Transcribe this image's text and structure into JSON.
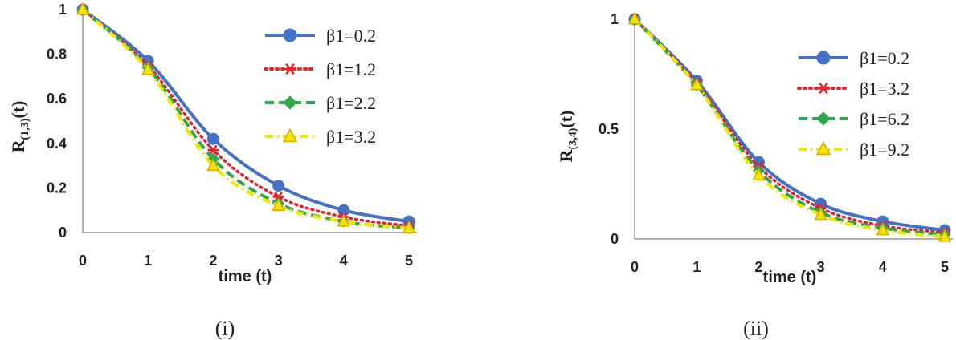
{
  "chart_data": [
    {
      "type": "line",
      "caption": "(i)",
      "xlabel": "time (t)",
      "ylabel_main": "R",
      "ylabel_sub": "(1,3)",
      "ylabel_tail": "(t)",
      "x": [
        0,
        1,
        2,
        3,
        4,
        5
      ],
      "xticks": [
        "0",
        "1",
        "2",
        "3",
        "4",
        "5"
      ],
      "yticks": [
        "0",
        "0.2",
        "0.4",
        "0.6",
        "0.8",
        "1"
      ],
      "yticks_values": [
        0,
        0.2,
        0.4,
        0.6,
        0.8,
        1
      ],
      "xlim": [
        0,
        5
      ],
      "ylim": [
        0,
        1
      ],
      "grid": false,
      "legend_position": "top-right",
      "series": [
        {
          "name": "β1=0.2",
          "values": [
            1,
            0.77,
            0.42,
            0.21,
            0.1,
            0.05
          ],
          "color": "#4472C4",
          "marker": "circle",
          "dash": "solid"
        },
        {
          "name": "β1=1.2",
          "values": [
            1,
            0.75,
            0.37,
            0.16,
            0.07,
            0.03
          ],
          "color": "#E8222A",
          "marker": "asterisk",
          "dash": "dotted"
        },
        {
          "name": "β1=2.2",
          "values": [
            1,
            0.74,
            0.33,
            0.13,
            0.05,
            0.02
          ],
          "color": "#2EA84A",
          "marker": "diamond",
          "dash": "dashed"
        },
        {
          "name": "β1=3.2",
          "values": [
            1,
            0.73,
            0.3,
            0.12,
            0.05,
            0.02
          ],
          "color": "#F2E600",
          "marker": "triangle",
          "dash": "dashdot"
        }
      ]
    },
    {
      "type": "line",
      "caption": "(ii)",
      "xlabel": "time (t)",
      "ylabel_main": "R",
      "ylabel_sub": "(3,4)",
      "ylabel_tail": "(t)",
      "x": [
        0,
        1,
        2,
        3,
        4,
        5
      ],
      "xticks": [
        "0",
        "1",
        "2",
        "3",
        "4",
        "5"
      ],
      "yticks": [
        "0",
        "0.5",
        "1"
      ],
      "yticks_values": [
        0,
        0.5,
        1
      ],
      "xlim": [
        0,
        5
      ],
      "ylim": [
        0,
        1
      ],
      "grid": false,
      "legend_position": "top-right",
      "series": [
        {
          "name": "β1=0.2",
          "values": [
            1,
            0.72,
            0.35,
            0.16,
            0.08,
            0.04
          ],
          "color": "#4472C4",
          "marker": "circle",
          "dash": "solid"
        },
        {
          "name": "β1=3.2",
          "values": [
            1,
            0.71,
            0.33,
            0.14,
            0.06,
            0.03
          ],
          "color": "#E8222A",
          "marker": "asterisk",
          "dash": "dotted"
        },
        {
          "name": "β1=6.2",
          "values": [
            1,
            0.7,
            0.31,
            0.12,
            0.05,
            0.02
          ],
          "color": "#2EA84A",
          "marker": "diamond",
          "dash": "dashed"
        },
        {
          "name": "β1=9.2",
          "values": [
            1,
            0.7,
            0.29,
            0.11,
            0.04,
            0.01
          ],
          "color": "#F2E600",
          "marker": "triangle",
          "dash": "dashdot"
        }
      ]
    }
  ]
}
